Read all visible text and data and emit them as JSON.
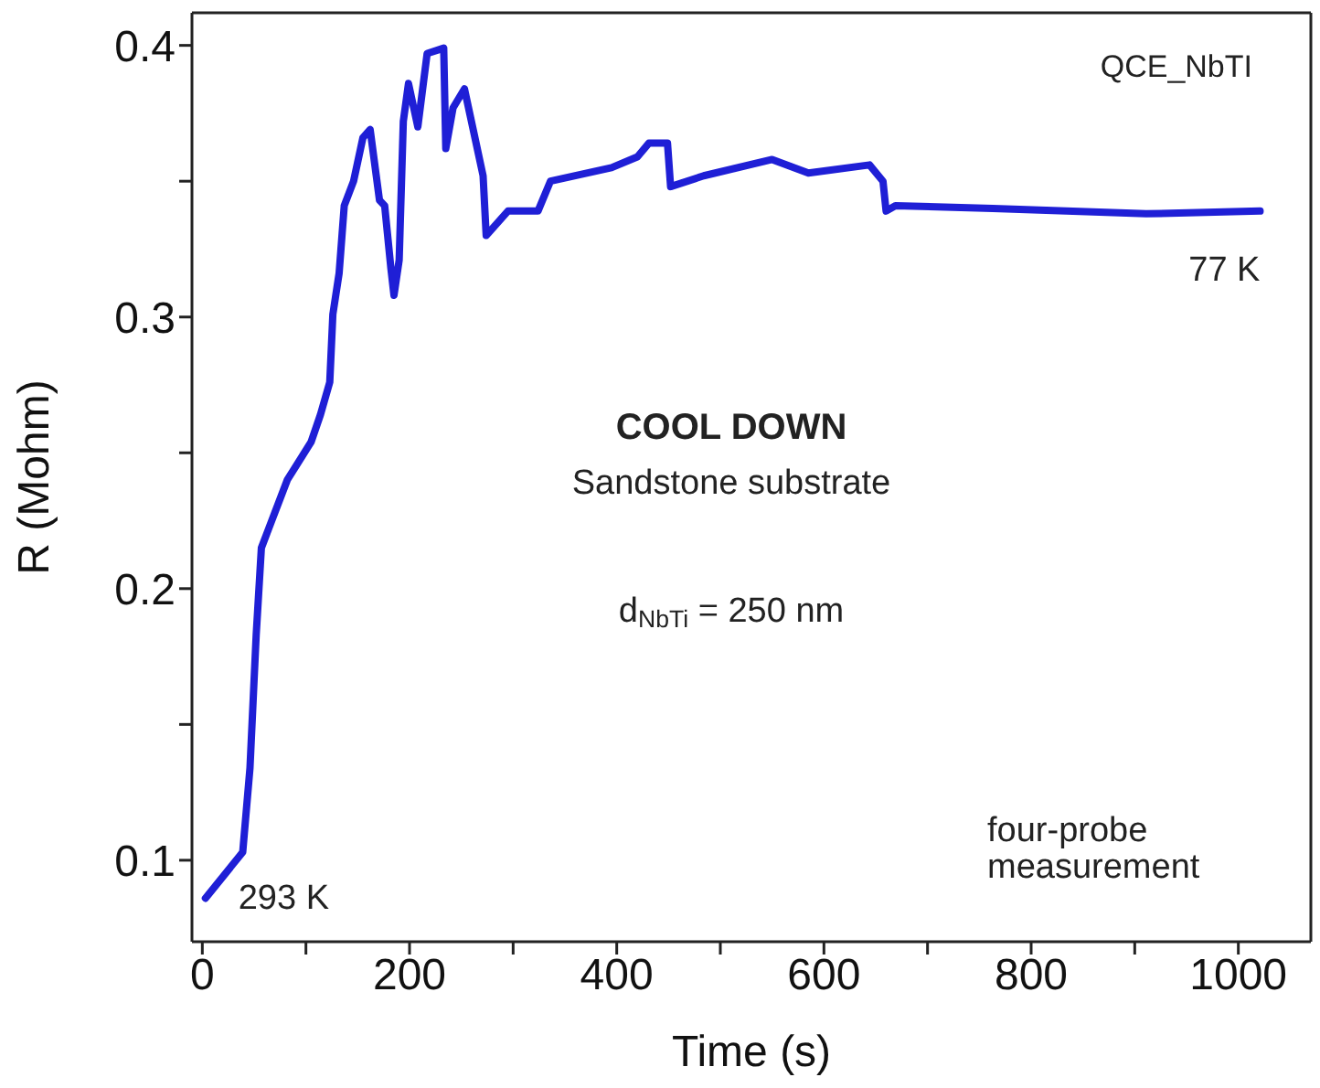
{
  "chart_data": {
    "type": "line",
    "xlabel": "Time (s)",
    "ylabel": "R (Mohm)",
    "xlim": [
      -10,
      1070
    ],
    "xticks": [
      0,
      {
        "value": 100,
        "label": null
      },
      200,
      {
        "value": 300,
        "label": null
      },
      400,
      {
        "value": 500,
        "label": null
      },
      600,
      {
        "value": 700,
        "label": null
      },
      800,
      {
        "value": 900,
        "label": null
      },
      1000
    ],
    "ylim": [
      0.07,
      0.412
    ],
    "yticks": [
      0.1,
      {
        "value": 0.15,
        "label": null
      },
      0.2,
      {
        "value": 0.25,
        "label": null
      },
      0.3,
      {
        "value": 0.35,
        "label": null
      },
      0.4
    ],
    "grid": false,
    "series": [
      {
        "color": "#1f1fd6",
        "x": [
          3,
          39,
          46,
          52,
          57,
          64,
          82,
          105,
          114,
          123,
          126,
          132,
          137,
          146,
          155,
          162,
          171,
          176,
          182,
          185,
          190,
          194,
          199,
          208,
          217,
          233,
          235,
          242,
          253,
          262,
          271,
          274,
          295,
          324,
          336,
          395,
          420,
          431,
          449,
          452,
          484,
          550,
          585,
          644,
          657,
          660,
          669,
          763,
          911,
          1021
        ],
        "values": [
          0.086,
          0.103,
          0.134,
          0.183,
          0.215,
          0.222,
          0.24,
          0.254,
          0.264,
          0.276,
          0.301,
          0.316,
          0.341,
          0.35,
          0.366,
          0.369,
          0.343,
          0.341,
          0.318,
          0.308,
          0.321,
          0.372,
          0.386,
          0.37,
          0.397,
          0.399,
          0.362,
          0.377,
          0.384,
          0.368,
          0.352,
          0.33,
          0.339,
          0.339,
          0.35,
          0.355,
          0.359,
          0.364,
          0.364,
          0.348,
          0.352,
          0.358,
          0.353,
          0.356,
          0.35,
          0.339,
          0.341,
          0.34,
          0.338,
          0.339
        ]
      }
    ],
    "annotations": [
      "QCE_NbTI",
      "COOL DOWN",
      "Sandstone substrate",
      "d$_{NbTi}$ = 250 nm",
      "four-probe measurement",
      {
        "text": "293 K",
        "x": 3,
        "y": 0.086
      },
      {
        "text": "77 K",
        "x": 1021,
        "y": 0.339
      }
    ]
  }
}
